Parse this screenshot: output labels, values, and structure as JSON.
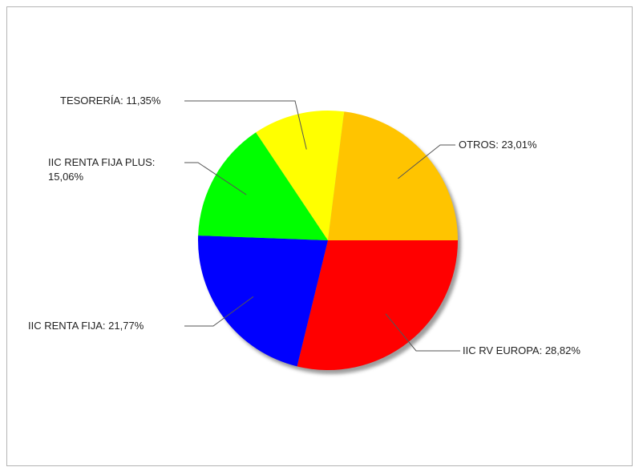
{
  "chart_data": {
    "type": "pie",
    "title": "",
    "slices": [
      {
        "label": "OTROS: 23,01%",
        "value": 23.01,
        "color": "#FFC400"
      },
      {
        "label": "IIC RV EUROPA: 28,82%",
        "value": 28.82,
        "color": "#FF0000"
      },
      {
        "label": "IIC RENTA FIJA: 21,77%",
        "value": 21.77,
        "color": "#0000FF"
      },
      {
        "label": "IIC RENTA FIJA PLUS:",
        "label2": "15,06%",
        "value": 15.06,
        "color": "#00FF00"
      },
      {
        "label": "TESORERÍA: 11,35%",
        "value": 11.35,
        "color": "#FFFF00"
      }
    ],
    "start_angle_deg": 0,
    "direction": "clockwise",
    "shadow": true,
    "legend": "none"
  }
}
